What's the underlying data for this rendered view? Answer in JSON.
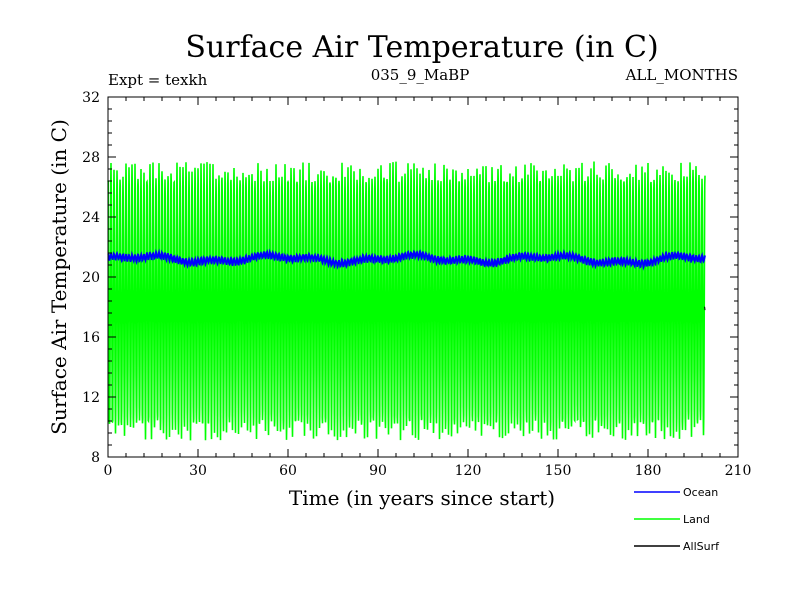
{
  "chart_data": {
    "type": "line",
    "title": "Surface Air Temperature (in C)",
    "subtitle_left": "Expt = texkh",
    "subtitle_center": "035_9_MaBP",
    "subtitle_right": "ALL_MONTHS",
    "xlabel": "Time (in years since start)",
    "ylabel": "Surface Air Temperature (in C)",
    "xlim": [
      0,
      210
    ],
    "ylim": [
      8,
      32
    ],
    "xticks": [
      0,
      30,
      60,
      90,
      120,
      150,
      180,
      210
    ],
    "yticks": [
      8,
      12,
      16,
      20,
      24,
      28,
      32
    ],
    "x_end": 199,
    "series": [
      {
        "name": "Ocean",
        "color": "#0000ff",
        "summary": "monthly values oscillating in a narrow band around 21.2",
        "mean": 21.2,
        "band_low": 20.8,
        "band_high": 21.7
      },
      {
        "name": "Land",
        "color": "#00ff00",
        "summary": "strong seasonal cycle, monthly values roughly 9.5 to 27.5",
        "mean": 18.0,
        "seasonal_low": 9.8,
        "seasonal_high": 27.0,
        "min": 8.5,
        "max": 28.2
      },
      {
        "name": "AllSurf",
        "color": "#000000",
        "summary": "mostly hidden under Land; visible briefly at end near 18",
        "mean": 18.0
      }
    ]
  }
}
